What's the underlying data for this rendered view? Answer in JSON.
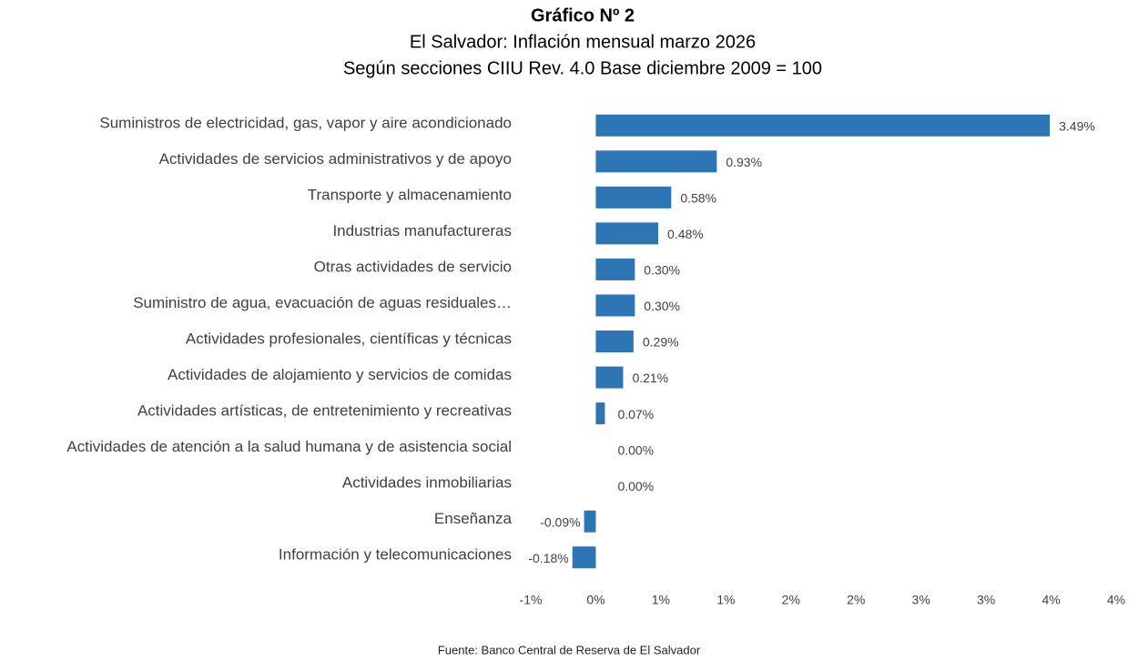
{
  "chart_data": {
    "type": "bar",
    "orientation": "horizontal",
    "title": "Gráfico Nº 2",
    "subtitle": [
      "El Salvador: Inflación mensual marzo 2026",
      "Según secciones CIIU Rev. 4.0 Base diciembre 2009 = 100"
    ],
    "categories": [
      "Suministros de electricidad, gas, vapor y aire acondicionado",
      "Actividades de servicios administrativos y de apoyo",
      "Transporte y almacenamiento",
      "Industrias manufactureras",
      "Otras actividades de servicio",
      "Suministro de agua, evacuación de aguas residuales…",
      "Actividades profesionales, científicas y técnicas",
      "Actividades de alojamiento y servicios de comidas",
      "Actividades artísticas, de entretenimiento y recreativas",
      "Actividades de atención a la salud humana y de asistencia social",
      "Actividades inmobiliarias",
      "Enseñanza",
      "Información y telecomunicaciones"
    ],
    "values": [
      3.49,
      0.93,
      0.58,
      0.48,
      0.3,
      0.3,
      0.29,
      0.21,
      0.07,
      0.0,
      0.0,
      -0.09,
      -0.18
    ],
    "value_labels": [
      "3.49%",
      "0.93%",
      "0.58%",
      "0.48%",
      "0.30%",
      "0.30%",
      "0.29%",
      "0.21%",
      "0.07%",
      "0.00%",
      "0.00%",
      "-0.09%",
      "-0.18%"
    ],
    "color": "#2e75b6",
    "xlim": [
      -0.5,
      4
    ],
    "xticks": [
      {
        "value": -0.5,
        "label": "-1%"
      },
      {
        "value": 0,
        "label": "0%"
      },
      {
        "value": 0.5,
        "label": "1%"
      },
      {
        "value": 1,
        "label": "1%"
      },
      {
        "value": 1.5,
        "label": "2%"
      },
      {
        "value": 2,
        "label": "2%"
      },
      {
        "value": 2.5,
        "label": "3%"
      },
      {
        "value": 3,
        "label": "3%"
      },
      {
        "value": 3.5,
        "label": "4%"
      },
      {
        "value": 4,
        "label": "4%"
      }
    ],
    "grid": false,
    "source": "Fuente: Banco Central de Reserva de El Salvador"
  }
}
